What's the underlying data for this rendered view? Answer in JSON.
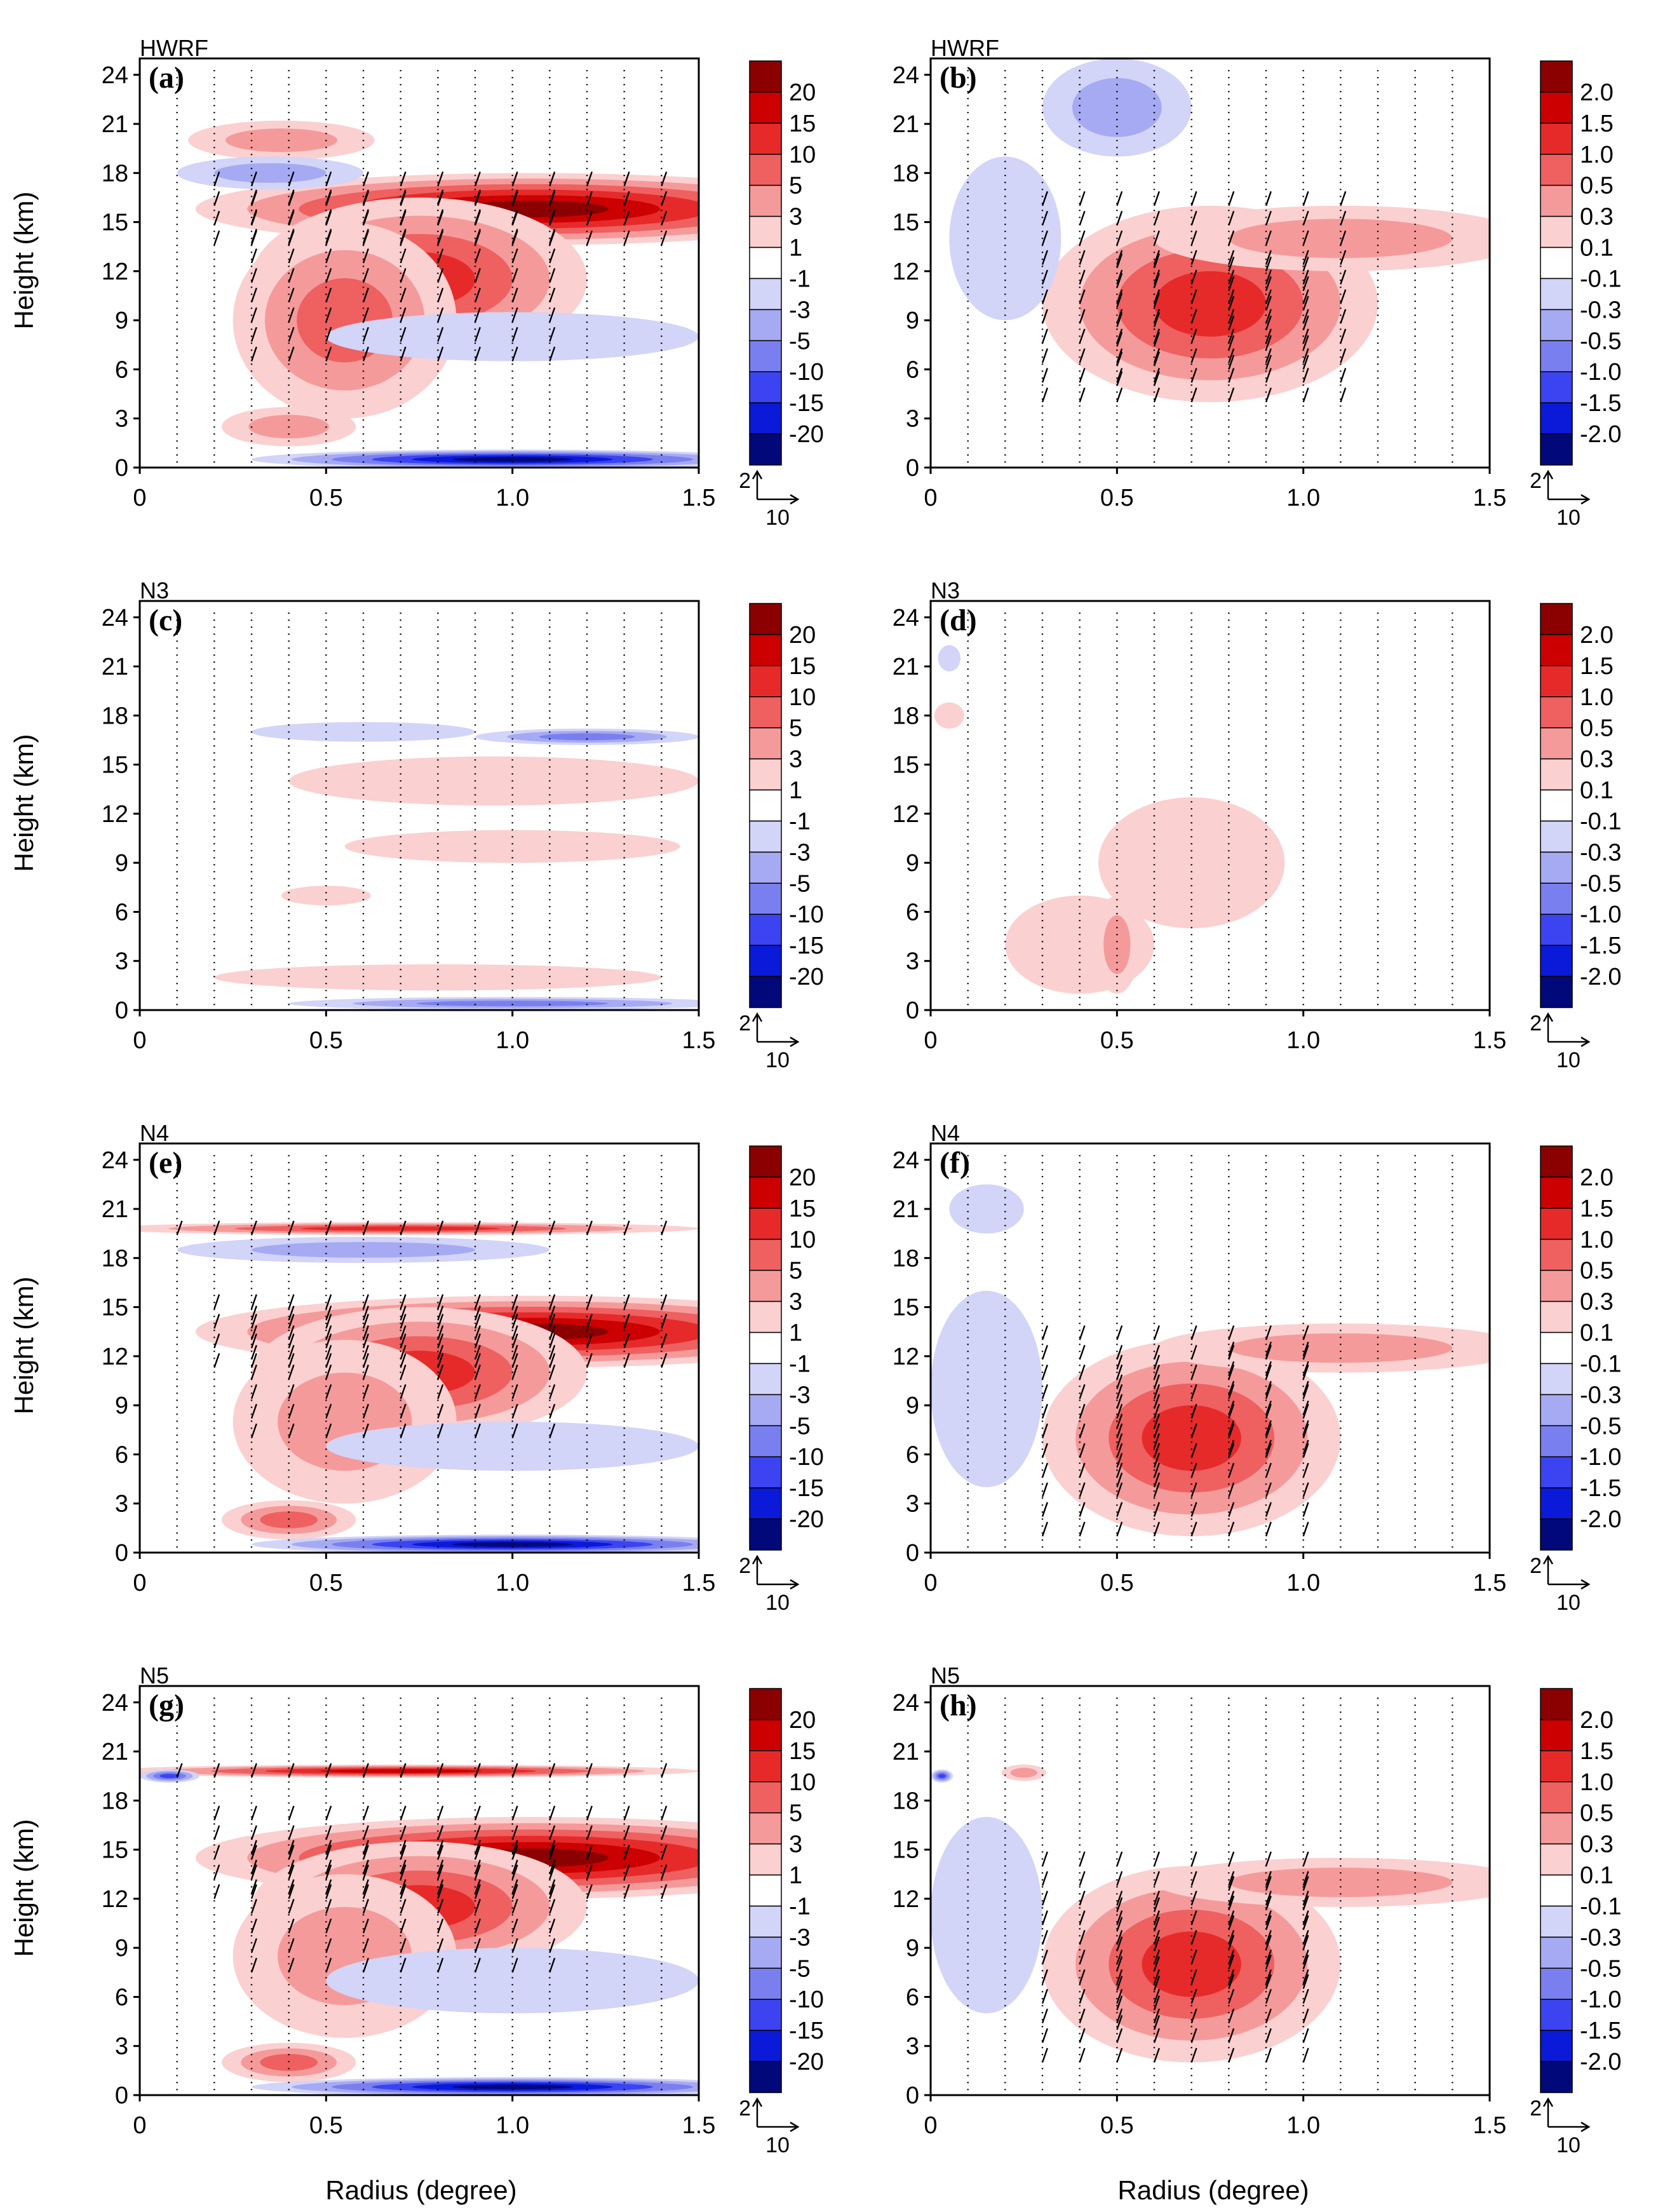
{
  "figure": {
    "xlabel": "Radius (degree)",
    "ylabel": "Height (km)"
  },
  "colors": {
    "positive": [
      "#ffffff",
      "#fbd0d0",
      "#f59a9a",
      "#ef6060",
      "#e62a2a",
      "#cc0000",
      "#8b0000"
    ],
    "negative": [
      "#ffffff",
      "#d2d4f8",
      "#a6aaf2",
      "#7a7ff0",
      "#3b44f0",
      "#0a1ad8",
      "#00087a"
    ],
    "arrow": "#000000"
  },
  "reference_vector": {
    "vertical": "2",
    "horizontal": "10"
  },
  "chart_data": [
    {
      "id": "a",
      "type": "heatmap",
      "model": "HWRF",
      "letter": "(a)",
      "xlim": [
        0,
        1.5
      ],
      "ylim": [
        0,
        25
      ],
      "x_ticks": [
        "0",
        "0.5",
        "1.0",
        "1.5"
      ],
      "y_ticks": [
        "0",
        "3",
        "6",
        "9",
        "12",
        "15",
        "18",
        "21",
        "24"
      ],
      "colorbar_levels": [
        "20",
        "15",
        "10",
        "5",
        "3",
        "1",
        "-1",
        "-3",
        "-5",
        "-10",
        "-15",
        "-20"
      ],
      "features": [
        {
          "sign": 1,
          "level": 6,
          "x": 1.05,
          "y": 15.8,
          "dx": 0.9,
          "dy": 2.2
        },
        {
          "sign": 1,
          "level": 4,
          "x": 0.75,
          "y": 11.5,
          "dx": 0.45,
          "dy": 5
        },
        {
          "sign": 1,
          "level": 3,
          "x": 0.55,
          "y": 9,
          "dx": 0.3,
          "dy": 6
        },
        {
          "sign": 1,
          "level": 2,
          "x": 0.4,
          "y": 2.5,
          "dx": 0.18,
          "dy": 1.2
        },
        {
          "sign": 1,
          "level": 2,
          "x": 0.38,
          "y": 20,
          "dx": 0.25,
          "dy": 1.2
        },
        {
          "sign": -1,
          "level": 2,
          "x": 0.35,
          "y": 18,
          "dx": 0.25,
          "dy": 1
        },
        {
          "sign": -1,
          "level": 1,
          "x": 1.0,
          "y": 8,
          "dx": 0.5,
          "dy": 1.5
        },
        {
          "sign": -1,
          "level": 6,
          "x": 1.0,
          "y": 0.5,
          "dx": 0.7,
          "dy": 0.6
        }
      ]
    },
    {
      "id": "b",
      "type": "heatmap",
      "model": "HWRF",
      "letter": "(b)",
      "xlim": [
        0,
        1.5
      ],
      "ylim": [
        0,
        25
      ],
      "x_ticks": [
        "0",
        "0.5",
        "1.0",
        "1.5"
      ],
      "y_ticks": [
        "0",
        "3",
        "6",
        "9",
        "12",
        "15",
        "18",
        "21",
        "24"
      ],
      "colorbar_levels": [
        "2.0",
        "1.5",
        "1.0",
        "0.5",
        "0.3",
        "0.1",
        "-0.1",
        "-0.3",
        "-0.5",
        "-1.0",
        "-1.5",
        "-2.0"
      ],
      "features": [
        {
          "sign": 1,
          "level": 6,
          "x": 0.55,
          "y": 9,
          "dx": 0.12,
          "dy": 4
        },
        {
          "sign": 1,
          "level": 5,
          "x": 0.9,
          "y": 9.5,
          "dx": 0.1,
          "dy": 3.5
        },
        {
          "sign": 1,
          "level": 4,
          "x": 0.75,
          "y": 10,
          "dx": 0.45,
          "dy": 6
        },
        {
          "sign": 1,
          "level": 2,
          "x": 1.1,
          "y": 14,
          "dx": 0.5,
          "dy": 2
        },
        {
          "sign": -1,
          "level": 2,
          "x": 0.5,
          "y": 22,
          "dx": 0.2,
          "dy": 3
        },
        {
          "sign": -1,
          "level": 1,
          "x": 0.2,
          "y": 14,
          "dx": 0.15,
          "dy": 5
        }
      ]
    },
    {
      "id": "c",
      "type": "heatmap",
      "model": "N3",
      "letter": "(c)",
      "xlim": [
        0,
        1.5
      ],
      "ylim": [
        0,
        25
      ],
      "x_ticks": [
        "0",
        "0.5",
        "1.0",
        "1.5"
      ],
      "y_ticks": [
        "0",
        "3",
        "6",
        "9",
        "12",
        "15",
        "18",
        "21",
        "24"
      ],
      "colorbar_levels": [
        "20",
        "15",
        "10",
        "5",
        "3",
        "1",
        "-1",
        "-3",
        "-5",
        "-10",
        "-15",
        "-20"
      ],
      "features": [
        {
          "sign": 1,
          "level": 1,
          "x": 0.95,
          "y": 14,
          "dx": 0.55,
          "dy": 1.5
        },
        {
          "sign": 1,
          "level": 1,
          "x": 1.0,
          "y": 10,
          "dx": 0.45,
          "dy": 1
        },
        {
          "sign": 1,
          "level": 1,
          "x": 0.5,
          "y": 7,
          "dx": 0.12,
          "dy": 0.6
        },
        {
          "sign": 1,
          "level": 1,
          "x": 0.8,
          "y": 2,
          "dx": 0.6,
          "dy": 0.8
        },
        {
          "sign": -1,
          "level": 3,
          "x": 1.2,
          "y": 16.7,
          "dx": 0.3,
          "dy": 0.5
        },
        {
          "sign": -1,
          "level": 1,
          "x": 0.6,
          "y": 17,
          "dx": 0.3,
          "dy": 0.6
        },
        {
          "sign": -1,
          "level": 3,
          "x": 1.0,
          "y": 0.4,
          "dx": 0.6,
          "dy": 0.4
        }
      ]
    },
    {
      "id": "d",
      "type": "heatmap",
      "model": "N3",
      "letter": "(d)",
      "xlim": [
        0,
        1.5
      ],
      "ylim": [
        0,
        25
      ],
      "x_ticks": [
        "0",
        "0.5",
        "1.0",
        "1.5"
      ],
      "y_ticks": [
        "0",
        "3",
        "6",
        "9",
        "12",
        "15",
        "18",
        "21",
        "24"
      ],
      "colorbar_levels": [
        "2.0",
        "1.5",
        "1.0",
        "0.5",
        "0.3",
        "0.1",
        "-0.1",
        "-0.3",
        "-0.5",
        "-1.0",
        "-1.5",
        "-2.0"
      ],
      "features": [
        {
          "sign": 1,
          "level": 1,
          "x": 0.7,
          "y": 9,
          "dx": 0.25,
          "dy": 4
        },
        {
          "sign": 1,
          "level": 1,
          "x": 0.4,
          "y": 4,
          "dx": 0.2,
          "dy": 3
        },
        {
          "sign": 1,
          "level": 2,
          "x": 0.5,
          "y": 4,
          "dx": 0.06,
          "dy": 3
        },
        {
          "sign": 1,
          "level": 1,
          "x": 0.05,
          "y": 18,
          "dx": 0.04,
          "dy": 0.8
        },
        {
          "sign": -1,
          "level": 1,
          "x": 0.05,
          "y": 21.5,
          "dx": 0.03,
          "dy": 0.8
        }
      ]
    },
    {
      "id": "e",
      "type": "heatmap",
      "model": "N4",
      "letter": "(e)",
      "xlim": [
        0,
        1.5
      ],
      "ylim": [
        0,
        25
      ],
      "x_ticks": [
        "0",
        "0.5",
        "1.0",
        "1.5"
      ],
      "y_ticks": [
        "0",
        "3",
        "6",
        "9",
        "12",
        "15",
        "18",
        "21",
        "24"
      ],
      "colorbar_levels": [
        "20",
        "15",
        "10",
        "5",
        "3",
        "1",
        "-1",
        "-3",
        "-5",
        "-10",
        "-15",
        "-20"
      ],
      "features": [
        {
          "sign": 1,
          "level": 6,
          "x": 1.05,
          "y": 13.5,
          "dx": 0.9,
          "dy": 2.2
        },
        {
          "sign": 1,
          "level": 4,
          "x": 0.75,
          "y": 11,
          "dx": 0.45,
          "dy": 4
        },
        {
          "sign": 1,
          "level": 2,
          "x": 0.55,
          "y": 8,
          "dx": 0.3,
          "dy": 5
        },
        {
          "sign": 1,
          "level": 3,
          "x": 0.4,
          "y": 2,
          "dx": 0.18,
          "dy": 1.2
        },
        {
          "sign": 1,
          "level": 4,
          "x": 0.7,
          "y": 19.8,
          "dx": 0.8,
          "dy": 0.4
        },
        {
          "sign": -1,
          "level": 2,
          "x": 0.6,
          "y": 18.5,
          "dx": 0.5,
          "dy": 0.8
        },
        {
          "sign": -1,
          "level": 1,
          "x": 1.0,
          "y": 6.5,
          "dx": 0.5,
          "dy": 1.5
        },
        {
          "sign": -1,
          "level": 6,
          "x": 1.0,
          "y": 0.5,
          "dx": 0.7,
          "dy": 0.6
        }
      ]
    },
    {
      "id": "f",
      "type": "heatmap",
      "model": "N4",
      "letter": "(f)",
      "xlim": [
        0,
        1.5
      ],
      "ylim": [
        0,
        25
      ],
      "x_ticks": [
        "0",
        "0.5",
        "1.0",
        "1.5"
      ],
      "y_ticks": [
        "0",
        "3",
        "6",
        "9",
        "12",
        "15",
        "18",
        "21",
        "24"
      ],
      "colorbar_levels": [
        "2.0",
        "1.5",
        "1.0",
        "0.5",
        "0.3",
        "0.1",
        "-0.1",
        "-0.3",
        "-0.5",
        "-1.0",
        "-1.5",
        "-2.0"
      ],
      "features": [
        {
          "sign": 1,
          "level": 6,
          "x": 0.52,
          "y": 8,
          "dx": 0.1,
          "dy": 4
        },
        {
          "sign": 1,
          "level": 5,
          "x": 0.9,
          "y": 9,
          "dx": 0.1,
          "dy": 3
        },
        {
          "sign": 1,
          "level": 4,
          "x": 0.7,
          "y": 7,
          "dx": 0.4,
          "dy": 6
        },
        {
          "sign": 1,
          "level": 2,
          "x": 1.1,
          "y": 12.5,
          "dx": 0.5,
          "dy": 1.5
        },
        {
          "sign": -1,
          "level": 1,
          "x": 0.15,
          "y": 10,
          "dx": 0.15,
          "dy": 6
        },
        {
          "sign": -1,
          "level": 1,
          "x": 0.15,
          "y": 21,
          "dx": 0.1,
          "dy": 1.5
        }
      ]
    },
    {
      "id": "g",
      "type": "heatmap",
      "model": "N5",
      "letter": "(g)",
      "xlim": [
        0,
        1.5
      ],
      "ylim": [
        0,
        25
      ],
      "x_ticks": [
        "0",
        "0.5",
        "1.0",
        "1.5"
      ],
      "y_ticks": [
        "0",
        "3",
        "6",
        "9",
        "12",
        "15",
        "18",
        "21",
        "24"
      ],
      "colorbar_levels": [
        "20",
        "15",
        "10",
        "5",
        "3",
        "1",
        "-1",
        "-3",
        "-5",
        "-10",
        "-15",
        "-20"
      ],
      "features": [
        {
          "sign": 1,
          "level": 6,
          "x": 1.05,
          "y": 14.5,
          "dx": 0.9,
          "dy": 2.5
        },
        {
          "sign": 1,
          "level": 4,
          "x": 0.75,
          "y": 11.5,
          "dx": 0.45,
          "dy": 4
        },
        {
          "sign": 1,
          "level": 2,
          "x": 0.55,
          "y": 8.5,
          "dx": 0.3,
          "dy": 5
        },
        {
          "sign": 1,
          "level": 3,
          "x": 0.4,
          "y": 2,
          "dx": 0.18,
          "dy": 1.2
        },
        {
          "sign": 1,
          "level": 5,
          "x": 0.7,
          "y": 19.8,
          "dx": 0.8,
          "dy": 0.4
        },
        {
          "sign": -1,
          "level": 4,
          "x": 0.08,
          "y": 19.5,
          "dx": 0.08,
          "dy": 0.4
        },
        {
          "sign": -1,
          "level": 1,
          "x": 1.0,
          "y": 7,
          "dx": 0.5,
          "dy": 2
        },
        {
          "sign": -1,
          "level": 6,
          "x": 1.0,
          "y": 0.5,
          "dx": 0.7,
          "dy": 0.6
        }
      ]
    },
    {
      "id": "h",
      "type": "heatmap",
      "model": "N5",
      "letter": "(h)",
      "xlim": [
        0,
        1.5
      ],
      "ylim": [
        0,
        25
      ],
      "x_ticks": [
        "0",
        "0.5",
        "1.0",
        "1.5"
      ],
      "y_ticks": [
        "0",
        "3",
        "6",
        "9",
        "12",
        "15",
        "18",
        "21",
        "24"
      ],
      "colorbar_levels": [
        "2.0",
        "1.5",
        "1.0",
        "0.5",
        "0.3",
        "0.1",
        "-0.1",
        "-0.3",
        "-0.5",
        "-1.0",
        "-1.5",
        "-2.0"
      ],
      "features": [
        {
          "sign": 1,
          "level": 6,
          "x": 0.53,
          "y": 8,
          "dx": 0.1,
          "dy": 4
        },
        {
          "sign": 1,
          "level": 5,
          "x": 0.9,
          "y": 9.5,
          "dx": 0.1,
          "dy": 3
        },
        {
          "sign": 1,
          "level": 4,
          "x": 0.7,
          "y": 8,
          "dx": 0.4,
          "dy": 6
        },
        {
          "sign": 1,
          "level": 2,
          "x": 1.1,
          "y": 13,
          "dx": 0.5,
          "dy": 1.5
        },
        {
          "sign": 1,
          "level": 2,
          "x": 0.25,
          "y": 19.7,
          "dx": 0.06,
          "dy": 0.5
        },
        {
          "sign": -1,
          "level": 1,
          "x": 0.15,
          "y": 11,
          "dx": 0.15,
          "dy": 6
        },
        {
          "sign": -1,
          "level": 4,
          "x": 0.03,
          "y": 19.5,
          "dx": 0.03,
          "dy": 0.4
        }
      ]
    }
  ]
}
